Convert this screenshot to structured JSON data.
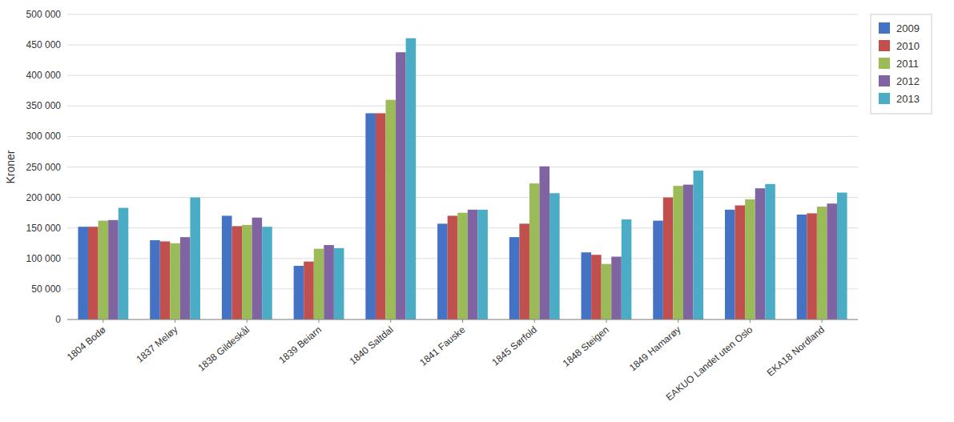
{
  "chart_data": {
    "type": "bar",
    "ylabel": "Kroner",
    "categories": [
      "1804 Bodø",
      "1837 Meløy",
      "1838 Gildeskål",
      "1839 Beiarn",
      "1840 Saltdal",
      "1841 Fauske",
      "1845 Sørfold",
      "1848 Steigen",
      "1849 Hamarøy",
      "EAKUO Landet uten Oslo",
      "EKA18 Nordland"
    ],
    "series": [
      {
        "name": "2009",
        "color": "#4472C4",
        "values": [
          152000,
          130000,
          170000,
          88000,
          338000,
          157000,
          135000,
          110000,
          162000,
          180000,
          172000
        ]
      },
      {
        "name": "2010",
        "color": "#C0504D",
        "values": [
          152000,
          128000,
          153000,
          95000,
          338000,
          170000,
          157000,
          106000,
          200000,
          187000,
          174000
        ]
      },
      {
        "name": "2011",
        "color": "#9BBB59",
        "values": [
          162000,
          125000,
          155000,
          116000,
          360000,
          175000,
          223000,
          91000,
          219000,
          197000,
          185000
        ]
      },
      {
        "name": "2012",
        "color": "#8064A2",
        "values": [
          163000,
          135000,
          167000,
          122000,
          438000,
          180000,
          251000,
          103000,
          221000,
          215000,
          190000
        ]
      },
      {
        "name": "2013",
        "color": "#4BACC6",
        "values": [
          183000,
          200000,
          152000,
          117000,
          461000,
          180000,
          207000,
          164000,
          244000,
          222000,
          208000
        ]
      }
    ],
    "ylim": [
      0,
      500000
    ],
    "yticks": [
      0,
      {
        "value": 50000,
        "label": "50 000"
      },
      {
        "value": 100000,
        "label": "100 000"
      },
      {
        "value": 150000,
        "label": "150 000"
      },
      {
        "value": 200000,
        "label": "200 000"
      },
      {
        "value": 250000,
        "label": "250 000"
      },
      {
        "value": 300000,
        "label": "300 000"
      },
      {
        "value": 350000,
        "label": "350 000"
      },
      {
        "value": 400000,
        "label": "400 000"
      },
      {
        "value": 450000,
        "label": "450 000"
      },
      {
        "value": 500000,
        "label": "500 000"
      }
    ],
    "grid": true,
    "legend": "right"
  }
}
